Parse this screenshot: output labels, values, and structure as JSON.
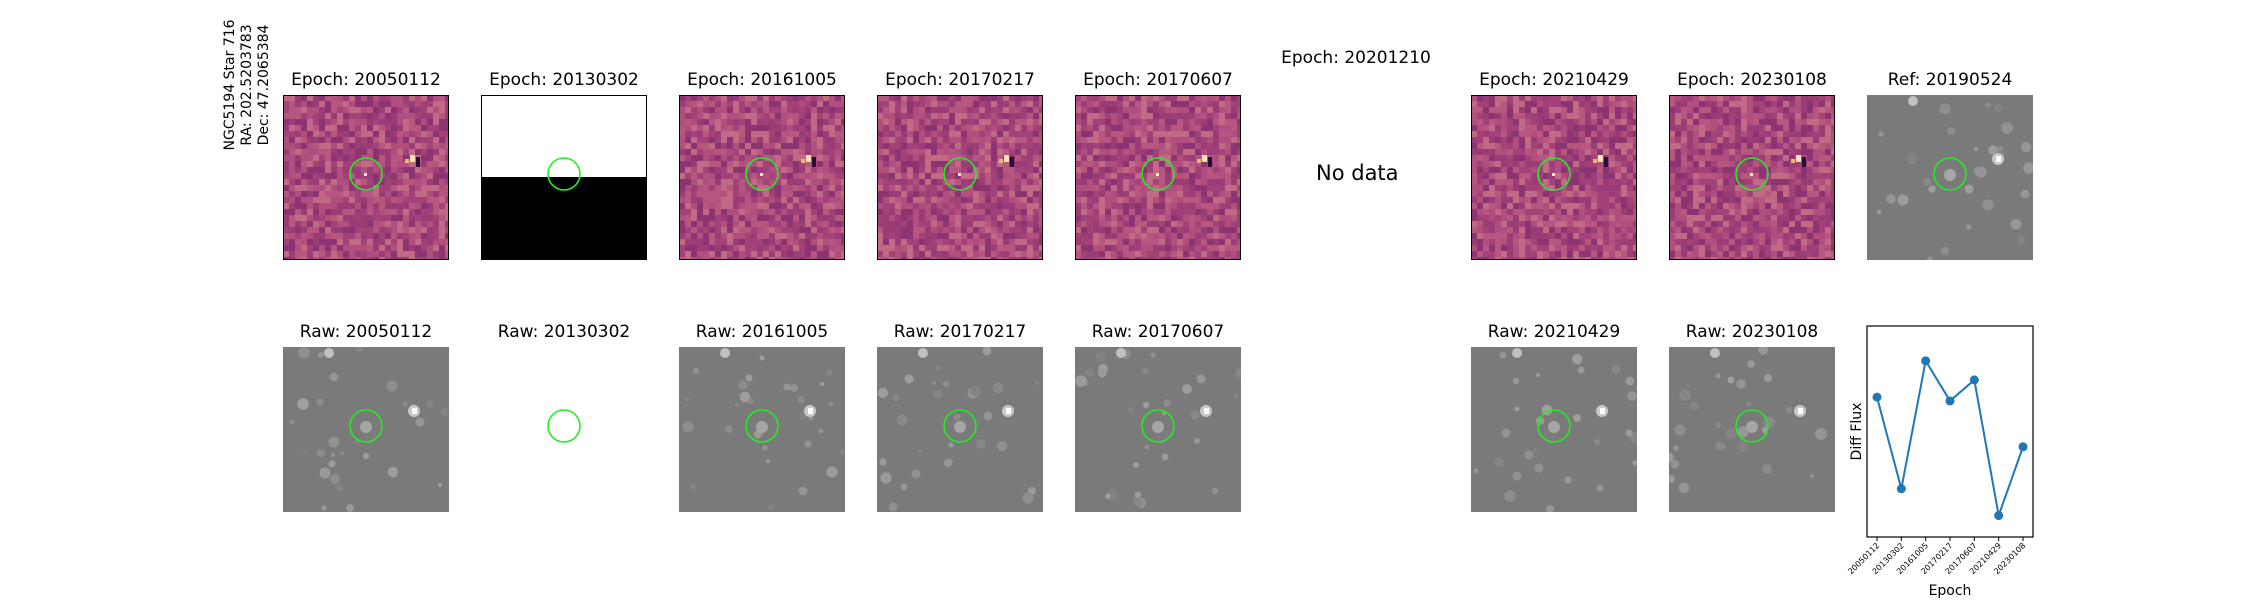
{
  "star_label": {
    "line1": "NGC5194 Star 716",
    "line2": "RA: 202.5203783",
    "line3": "Dec: 47.2065384"
  },
  "diff_row": [
    {
      "title": "Epoch: 20050112",
      "kind": "diff"
    },
    {
      "title": "Epoch: 20130302",
      "kind": "split"
    },
    {
      "title": "Epoch: 20161005",
      "kind": "diff"
    },
    {
      "title": "Epoch: 20170217",
      "kind": "diff"
    },
    {
      "title": "Epoch: 20170607",
      "kind": "diff"
    },
    {
      "title": "Epoch: 20201210",
      "kind": "nodata",
      "message": "No data"
    },
    {
      "title": "Epoch: 20210429",
      "kind": "diff"
    },
    {
      "title": "Epoch: 20230108",
      "kind": "diff"
    },
    {
      "title": "Ref: 20190524",
      "kind": "raw"
    }
  ],
  "raw_row": [
    {
      "title": "Raw: 20050112",
      "kind": "raw"
    },
    {
      "title": "Raw: 20130302",
      "kind": "empty"
    },
    {
      "title": "Raw: 20161005",
      "kind": "raw"
    },
    {
      "title": "Raw: 20170217",
      "kind": "raw"
    },
    {
      "title": "Raw: 20170607",
      "kind": "raw"
    },
    {
      "title": "",
      "kind": "none"
    },
    {
      "title": "Raw: 20210429",
      "kind": "raw"
    },
    {
      "title": "Raw: 20230108",
      "kind": "raw"
    }
  ],
  "colors": {
    "diff_bg": "#a8457a",
    "raw_bg": "#7a7a7a",
    "circle": "#22ee22",
    "line": "#1f77b4"
  },
  "chart_data": {
    "type": "line",
    "title": "",
    "xlabel": "Epoch",
    "ylabel": "Diff Flux",
    "categories": [
      "20050112",
      "20130302",
      "20161005",
      "20170217",
      "20170607",
      "20210429",
      "20230108"
    ],
    "values": [
      0.68,
      0.2,
      0.87,
      0.66,
      0.77,
      0.06,
      0.42
    ],
    "ylim": [
      0,
      1
    ],
    "grid": false
  }
}
